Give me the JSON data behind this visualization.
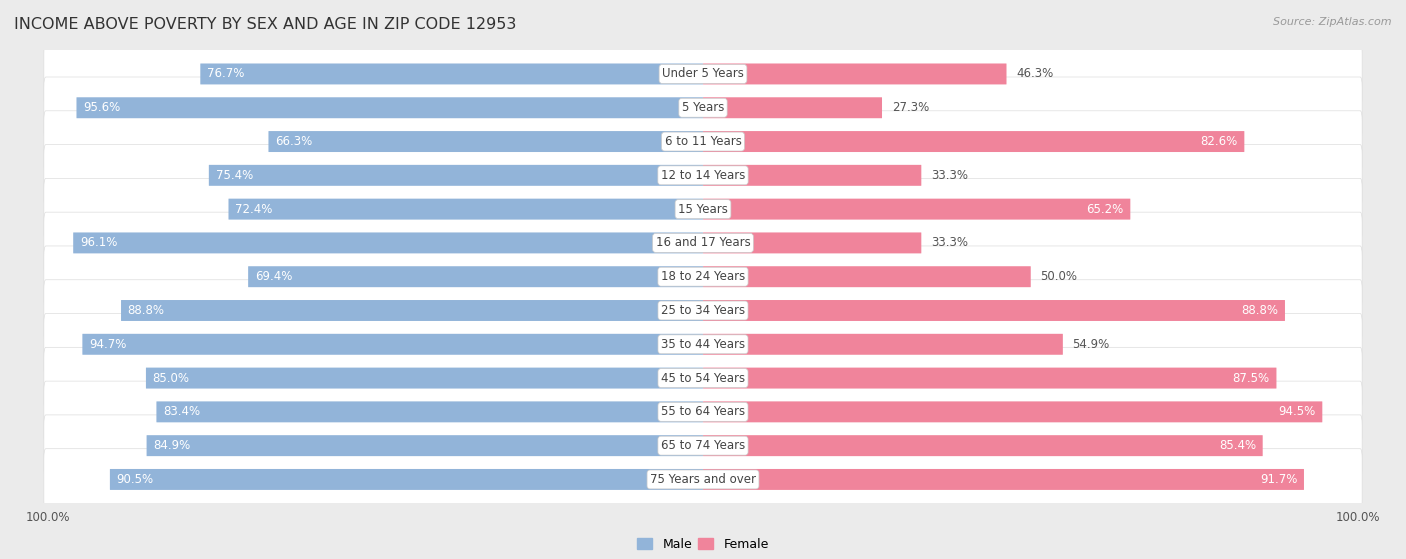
{
  "title": "INCOME ABOVE POVERTY BY SEX AND AGE IN ZIP CODE 12953",
  "source": "Source: ZipAtlas.com",
  "categories": [
    "Under 5 Years",
    "5 Years",
    "6 to 11 Years",
    "12 to 14 Years",
    "15 Years",
    "16 and 17 Years",
    "18 to 24 Years",
    "25 to 34 Years",
    "35 to 44 Years",
    "45 to 54 Years",
    "55 to 64 Years",
    "65 to 74 Years",
    "75 Years and over"
  ],
  "male_values": [
    76.7,
    95.6,
    66.3,
    75.4,
    72.4,
    96.1,
    69.4,
    88.8,
    94.7,
    85.0,
    83.4,
    84.9,
    90.5
  ],
  "female_values": [
    46.3,
    27.3,
    82.6,
    33.3,
    65.2,
    33.3,
    50.0,
    88.8,
    54.9,
    87.5,
    94.5,
    85.4,
    91.7
  ],
  "male_color": "#92b4d9",
  "male_color_dark": "#6fa0cc",
  "female_color": "#f0849b",
  "female_color_light": "#f7b8c8",
  "bg_color": "#ebebeb",
  "row_bg_color": "#ffffff",
  "title_fontsize": 11.5,
  "label_fontsize": 8.5,
  "value_fontsize": 8.5,
  "source_fontsize": 8,
  "legend_fontsize": 9,
  "axis_label_fontsize": 8.5
}
